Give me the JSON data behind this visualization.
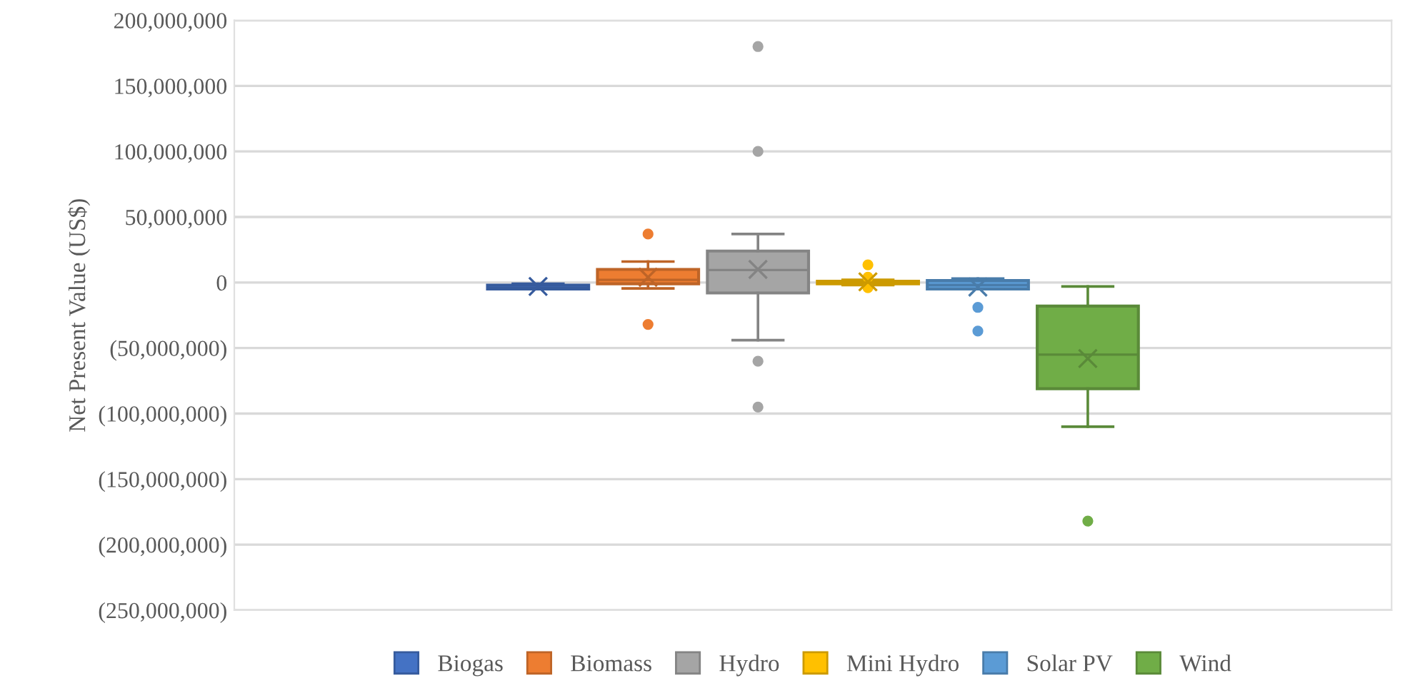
{
  "chart_data": {
    "type": "box",
    "ylabel": "Net Present Value (US$)",
    "categories": [
      null
    ],
    "ylim": [
      -250000000,
      200000000
    ],
    "yticks": [
      {
        "value": -250000000,
        "label": "(250,000,000)"
      },
      {
        "value": -200000000,
        "label": "(200,000,000)"
      },
      {
        "value": -150000000,
        "label": "(150,000,000)"
      },
      {
        "value": -100000000,
        "label": "(100,000,000)"
      },
      {
        "value": -50000000,
        "label": "(50,000,000)"
      },
      0,
      {
        "value": 50000000,
        "label": "50,000,000"
      },
      {
        "value": 100000000,
        "label": "100,000,000"
      },
      {
        "value": 150000000,
        "label": "150,000,000"
      },
      {
        "value": 200000000,
        "label": "200,000,000"
      }
    ],
    "grid": "y",
    "legend": "bottom",
    "marker": "circle",
    "series": [
      {
        "name": "Biogas",
        "color": "#4472c4",
        "boxes": [
          {
            "low": -5000000,
            "q1": -5000000,
            "median": -4000000,
            "q3": -2000000,
            "high": -1000000,
            "mean": -3000000
          }
        ]
      },
      {
        "name": "Biomass",
        "color": "#ed7d31",
        "boxes": [
          {
            "low": -4500000,
            "q1": -1000000,
            "median": 2000000,
            "q3": 10000000,
            "high": 16000000,
            "mean": 4000000,
            "outliers": [
              37000000,
              -32000000
            ]
          }
        ]
      },
      {
        "name": "Hydro",
        "color": "#a5a5a5",
        "boxes": [
          {
            "low": -44000000,
            "q1": -8000000,
            "median": 9500000,
            "q3": 24000000,
            "high": 37000000,
            "mean": 10000000,
            "outliers": [
              180000000,
              100000000,
              -60000000,
              -95000000
            ]
          }
        ]
      },
      {
        "name": "Mini Hydro",
        "color": "#ffc000",
        "boxes": [
          {
            "low": -2000000,
            "q1": -1000000,
            "median": 0,
            "q3": 1000000,
            "high": 2000000,
            "mean": 500000,
            "outliers": [
              13500000,
              4000000,
              -4000000
            ]
          }
        ]
      },
      {
        "name": "Solar PV",
        "color": "#5b9bd5",
        "boxes": [
          {
            "low": -5000000,
            "q1": -5000000,
            "median": -2000000,
            "q3": 1500000,
            "high": 3000000,
            "mean": -3500000,
            "outliers": [
              -19000000,
              -37000000
            ]
          }
        ]
      },
      {
        "name": "Wind",
        "color": "#70ad47",
        "boxes": [
          {
            "low": -110000000,
            "q1": -81000000,
            "median": -55000000,
            "q3": -18000000,
            "high": -3000000,
            "mean": -58000000,
            "outliers": [
              -182000000
            ]
          }
        ]
      }
    ]
  }
}
